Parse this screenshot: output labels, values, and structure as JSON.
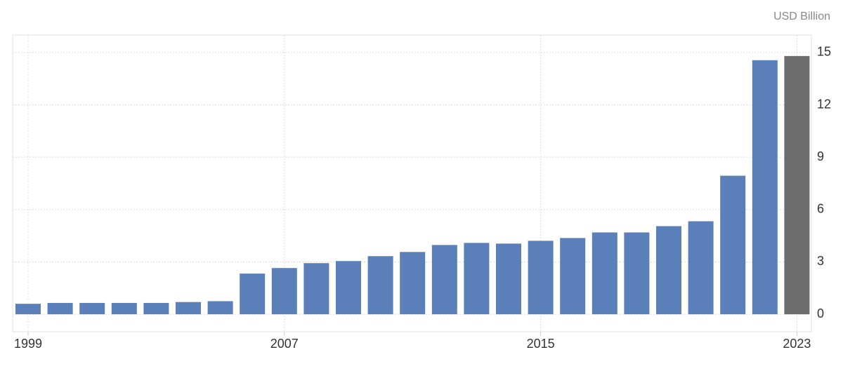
{
  "chart_data": {
    "type": "bar",
    "unit_label": "USD Billion",
    "categories": [
      "1999",
      null,
      null,
      null,
      null,
      null,
      null,
      null,
      "2007",
      null,
      null,
      null,
      null,
      null,
      null,
      null,
      "2015",
      null,
      null,
      null,
      null,
      null,
      null,
      null,
      "2023"
    ],
    "values": [
      0.6,
      0.65,
      0.65,
      0.65,
      0.65,
      0.7,
      0.75,
      2.33,
      2.65,
      2.93,
      3.05,
      3.33,
      3.57,
      3.97,
      4.09,
      4.05,
      4.21,
      4.37,
      4.69,
      4.69,
      5.05,
      5.33,
      7.94,
      14.56,
      14.8
    ],
    "colors": [
      "#5b7fb8",
      "#5b7fb8",
      "#5b7fb8",
      "#5b7fb8",
      "#5b7fb8",
      "#5b7fb8",
      "#5b7fb8",
      "#5b7fb8",
      "#5b7fb8",
      "#5b7fb8",
      "#5b7fb8",
      "#5b7fb8",
      "#5b7fb8",
      "#5b7fb8",
      "#5b7fb8",
      "#5b7fb8",
      "#5b7fb8",
      "#5b7fb8",
      "#5b7fb8",
      "#5b7fb8",
      "#5b7fb8",
      "#5b7fb8",
      "#5b7fb8",
      "#5b7fb8",
      "#6d6d6d"
    ],
    "ylim": [
      -1,
      16
    ],
    "yticks": [
      0,
      3,
      6,
      9,
      12,
      15
    ],
    "grid": true,
    "y_axis_side": "right"
  }
}
